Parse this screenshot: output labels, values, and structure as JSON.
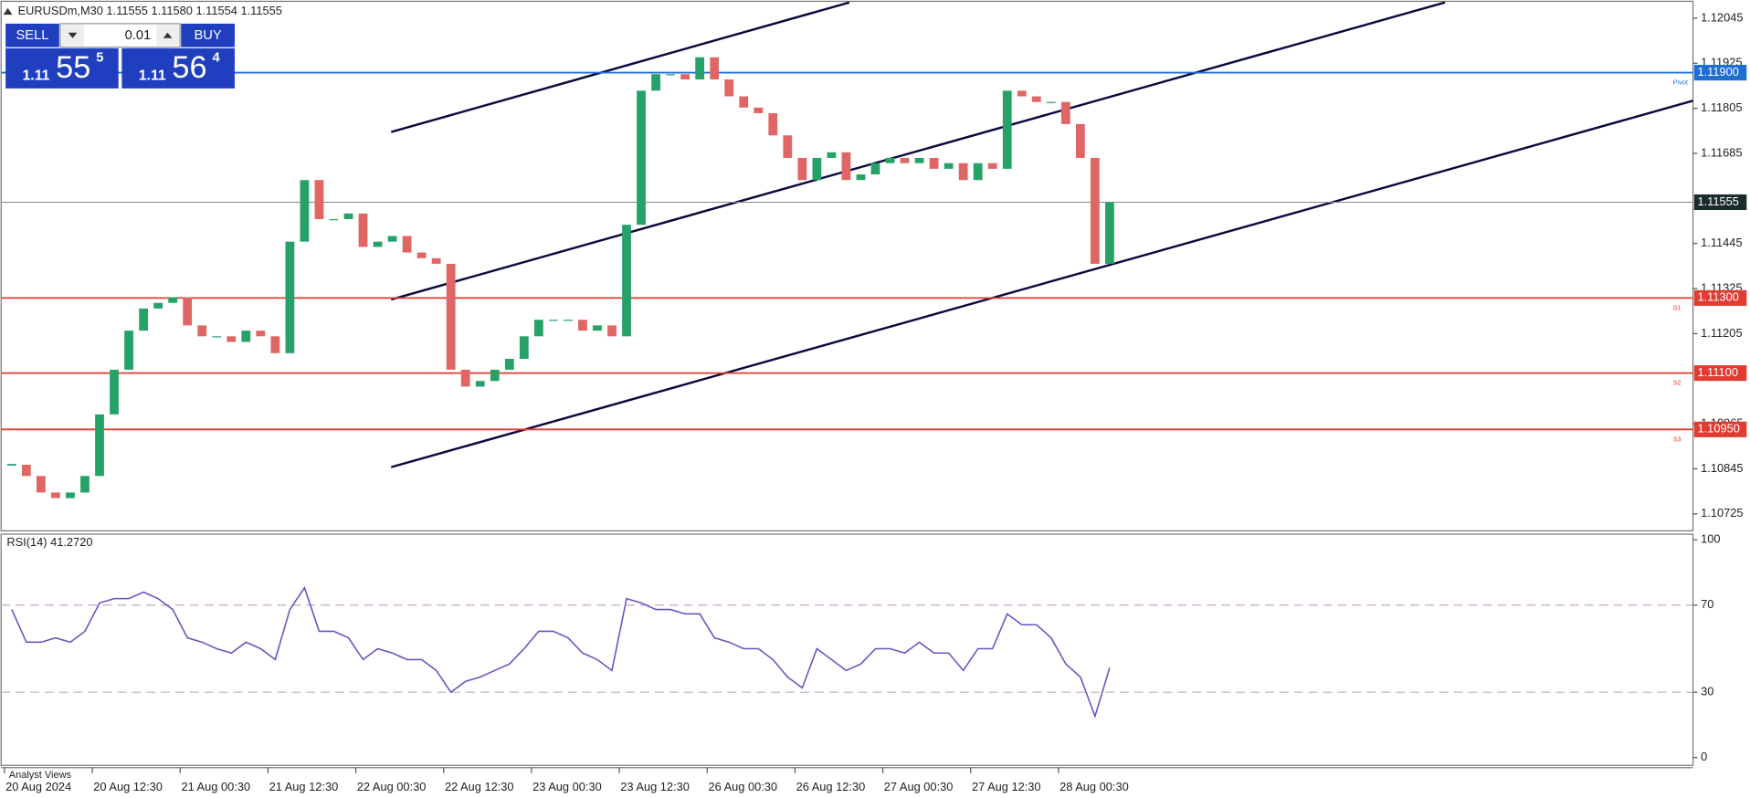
{
  "chart_data": [
    {
      "type": "candlestick",
      "title": "EURUSDm,M30  1.11555 1.11580 1.11554 1.11555",
      "categories": [
        "20 Aug 2024",
        null,
        null,
        null,
        null,
        null,
        "20 Aug 12:30",
        null,
        null,
        null,
        null,
        null,
        "21 Aug 00:30",
        null,
        null,
        null,
        null,
        null,
        "21 Aug 12:30",
        null,
        null,
        null,
        null,
        null,
        "22 Aug 00:30",
        null,
        null,
        null,
        null,
        null,
        "22 Aug 12:30",
        null,
        null,
        null,
        null,
        null,
        "23 Aug 00:30",
        null,
        null,
        null,
        null,
        null,
        "23 Aug 12:30",
        null,
        null,
        null,
        null,
        null,
        "26 Aug 00:30",
        null,
        null,
        null,
        null,
        null,
        "26 Aug 12:30",
        null,
        null,
        null,
        null,
        null,
        "27 Aug 00:30",
        null,
        null,
        null,
        null,
        null,
        "27 Aug 12:30",
        null,
        null,
        null,
        null,
        null,
        "28 Aug 00:30",
        null,
        null,
        null
      ],
      "values": [
        1.10856,
        1.10826,
        1.10782,
        1.10767,
        1.10782,
        1.10826,
        1.1099,
        1.11109,
        1.11213,
        1.11272,
        1.11287,
        1.11302,
        1.11227,
        1.11198,
        1.11198,
        1.11183,
        1.11213,
        1.11198,
        1.11153,
        1.1145,
        1.11614,
        1.1151,
        1.1151,
        1.11525,
        1.11436,
        1.1145,
        1.11465,
        1.11421,
        1.11406,
        1.11391,
        1.11109,
        1.11064,
        1.11079,
        1.11109,
        1.11138,
        1.11198,
        1.11242,
        1.11242,
        1.11242,
        1.11213,
        1.11227,
        1.11198,
        1.11495,
        1.11852,
        1.11896,
        1.11896,
        1.11882,
        1.11941,
        1.11882,
        1.11837,
        1.11807,
        1.11792,
        1.11733,
        1.11673,
        1.11614,
        1.11673,
        1.11688,
        1.11614,
        1.11629,
        1.11659,
        1.11673,
        1.11659,
        1.11673,
        1.11644,
        1.11659,
        1.11614,
        1.11659,
        1.11644,
        1.11852,
        1.11837,
        1.11822,
        1.11822,
        1.11763,
        1.11673,
        1.11391,
        1.11555
      ],
      "up_color": "#26a269",
      "down_color": "#e06666",
      "ylim": [
        1.1068,
        1.1209
      ],
      "yticks": [
        1.12045,
        1.11925,
        1.11805,
        1.11685,
        1.11445,
        1.11325,
        1.11205,
        1.10965,
        1.10845,
        1.10725
      ],
      "levels": [
        {
          "name": "Pivot",
          "value": 1.119,
          "value_label": "1.11900",
          "color": "#1f6fd0"
        },
        {
          "name": "S1",
          "value": 1.113,
          "value_label": "1.11300",
          "color": "#e03c31"
        },
        {
          "name": "S2",
          "value": 1.111,
          "value_label": "1.11100",
          "color": "#e03c31"
        },
        {
          "name": "S3",
          "value": 1.1095,
          "value_label": "1.10950",
          "color": "#e03c31"
        }
      ],
      "current": 1.11555
    },
    {
      "type": "line",
      "title": "RSI(14) 41.2720",
      "values": [
        68,
        53,
        53,
        55,
        53,
        58,
        71,
        73,
        73,
        76,
        73,
        68,
        55,
        53,
        50,
        48,
        53,
        50,
        45,
        68,
        78,
        58,
        58,
        55,
        45,
        50,
        48,
        45,
        45,
        40,
        30,
        35,
        37,
        40,
        43,
        50,
        58,
        58,
        55,
        48,
        45,
        40,
        73,
        71,
        68,
        68,
        66,
        66,
        55,
        53,
        50,
        50,
        45,
        37,
        32,
        50,
        45,
        40,
        43,
        50,
        50,
        48,
        53,
        48,
        48,
        40,
        50,
        50,
        66,
        61,
        61,
        55,
        43,
        37,
        19,
        41.272
      ],
      "color": "#6a55c0",
      "ylim": [
        -3.6,
        102.6
      ],
      "yticks": [
        0,
        30,
        70,
        100
      ],
      "levels": [
        30,
        70
      ]
    }
  ],
  "trade_panel": {
    "sell": "SELL",
    "buy": "BUY",
    "volume": "0.01",
    "bid": {
      "big": "1.11",
      "pips": "55",
      "frac": "5"
    },
    "ask": {
      "big": "1.11",
      "pips": "56",
      "frac": "4"
    }
  },
  "footer": "Analyst Views"
}
